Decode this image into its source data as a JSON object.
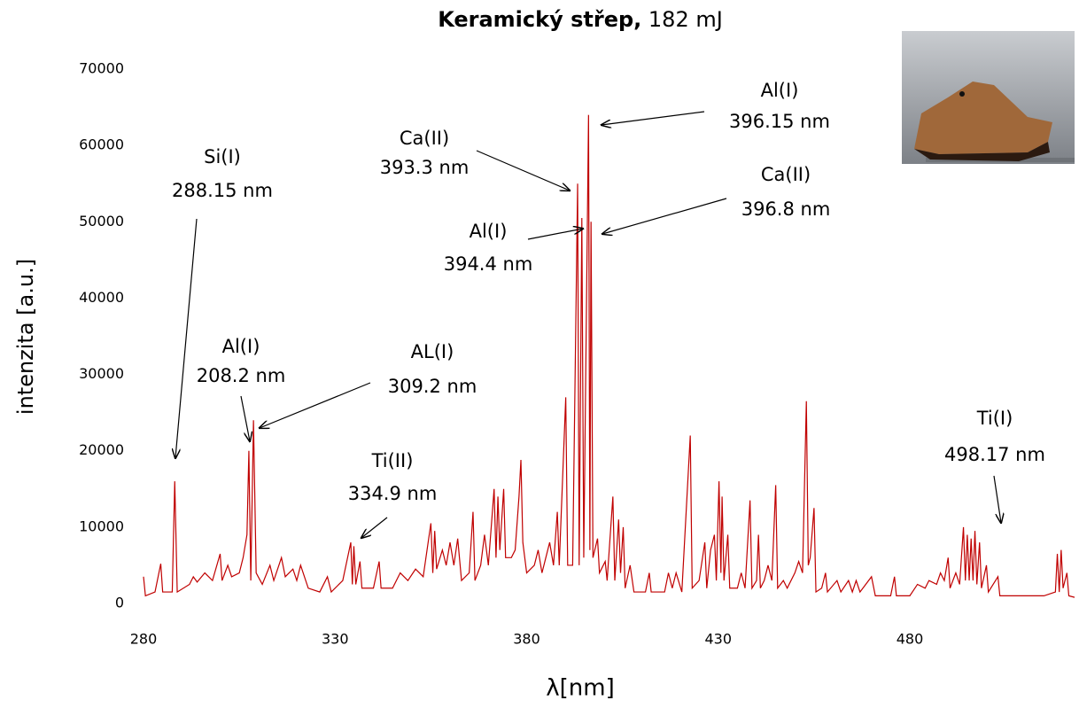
{
  "chart_data": {
    "type": "line",
    "title": "Keramický střep,",
    "subtitle": "182 mJ",
    "x_label": "λ[nm]",
    "y_label": "intenzita [a.u.]",
    "xlim": [
      280,
      523
    ],
    "ylim": [
      0,
      70000
    ],
    "xticks": [
      280,
      330,
      380,
      430,
      480
    ],
    "yticks": [
      0,
      10000,
      20000,
      30000,
      40000,
      50000,
      60000,
      70000
    ],
    "grid": false,
    "series": [
      {
        "color": "#c00000",
        "x": [
          280,
          280.5,
          283,
          284.5,
          285,
          287.5,
          288.15,
          288.8,
          292,
          293,
          294,
          296,
          298,
          300,
          300.5,
          302,
          303,
          305,
          306,
          307,
          307.5,
          308,
          308.7,
          309.4,
          311,
          313,
          314,
          316,
          317,
          319,
          320,
          321,
          323,
          326,
          328,
          329,
          331,
          332,
          334.1,
          334.5,
          334.9,
          335.4,
          336.5,
          337,
          340,
          341.5,
          342,
          345,
          347,
          349,
          351,
          353,
          355,
          355.5,
          356,
          356.5,
          358,
          359,
          360,
          361,
          362,
          363,
          365,
          366,
          366.5,
          368,
          369,
          370,
          371.5,
          372,
          372.5,
          373,
          374,
          374.5,
          376,
          377,
          378,
          378.5,
          379,
          380,
          382,
          383,
          384,
          385,
          386,
          387,
          388,
          388.5,
          390.2,
          390.7,
          392,
          393.3,
          393.7,
          394.4,
          394.9,
          396.15,
          396.5,
          396.8,
          397.3,
          398.5,
          399,
          400.5,
          401,
          402.5,
          403,
          404,
          404.5,
          405.2,
          405.7,
          407,
          408,
          411,
          412,
          412.5,
          416,
          417,
          418,
          419,
          420.5,
          422.7,
          423.2,
          425,
          426.5,
          427,
          428,
          429,
          429.5,
          430.2,
          430.7,
          431,
          431.5,
          432.5,
          433,
          435,
          436,
          437,
          438.3,
          438.8,
          440,
          440.5,
          441,
          442,
          443,
          444,
          445,
          445.5,
          447,
          448,
          450,
          451,
          452,
          453,
          453.5,
          454,
          455,
          455.5,
          457,
          458,
          458.5,
          461,
          462,
          464,
          465,
          466,
          467,
          470,
          471,
          475,
          476,
          476.5,
          480,
          482,
          484,
          485,
          487,
          488,
          489,
          490,
          490.5,
          492,
          493,
          494,
          494.5,
          495,
          495.5,
          496,
          496.5,
          497,
          497.5,
          498.2,
          498.7,
          500,
          500.5,
          503,
          503.5,
          508,
          515,
          518,
          518.5,
          519,
          519.5,
          520,
          521,
          521.5,
          523
        ],
        "values": [
          3500,
          1000,
          1500,
          5200,
          1500,
          1500,
          16000,
          1500,
          2500,
          3500,
          2800,
          4000,
          3000,
          6500,
          3000,
          5000,
          3500,
          4000,
          6000,
          9000,
          20000,
          3000,
          24000,
          4000,
          2500,
          5000,
          3000,
          6000,
          3500,
          4500,
          3000,
          5000,
          2000,
          1500,
          3500,
          1500,
          2500,
          3000,
          8000,
          2500,
          7500,
          2500,
          5500,
          2000,
          2000,
          5500,
          2000,
          2000,
          4000,
          3000,
          4500,
          3500,
          10500,
          4000,
          9500,
          4500,
          7000,
          5000,
          8000,
          5000,
          8500,
          3000,
          4000,
          12000,
          3000,
          5000,
          9000,
          5000,
          15000,
          6000,
          14000,
          7000,
          15000,
          6000,
          6000,
          7000,
          14000,
          18800,
          8000,
          4000,
          5000,
          7000,
          4000,
          6000,
          8000,
          5000,
          12000,
          5000,
          27000,
          5000,
          5000,
          55000,
          5000,
          50500,
          6000,
          64000,
          7000,
          50000,
          6000,
          8500,
          4000,
          5500,
          3000,
          14000,
          3000,
          11000,
          4000,
          10000,
          2000,
          5000,
          1500,
          1500,
          4000,
          1500,
          1500,
          4000,
          2000,
          4000,
          1500,
          22000,
          2000,
          3000,
          8000,
          2000,
          7000,
          9000,
          3000,
          16000,
          4000,
          14000,
          3000,
          9000,
          2000,
          2000,
          4000,
          2000,
          13500,
          2000,
          3000,
          9000,
          2000,
          3000,
          5000,
          3000,
          15500,
          2000,
          3000,
          2000,
          4000,
          5500,
          4000,
          26500,
          5000,
          6000,
          12500,
          1500,
          2000,
          4000,
          1500,
          3000,
          1500,
          3000,
          1500,
          3000,
          1500,
          3500,
          1000,
          1000,
          3500,
          1000,
          1000,
          2500,
          2000,
          3000,
          2500,
          4000,
          3000,
          6000,
          2000,
          4000,
          2500,
          10000,
          3000,
          9000,
          3000,
          8500,
          3000,
          9500,
          2500,
          8000,
          2000,
          5000,
          1500,
          3500,
          1000,
          1000,
          1000,
          1500,
          6500,
          1500,
          7000,
          2000,
          4000,
          1000,
          800
        ]
      }
    ],
    "annotations": [
      [
        "Si(I)",
        "288.15 nm"
      ],
      [
        "Al(I)",
        "208.2 nm"
      ],
      [
        "AL(I)",
        "309.2 nm"
      ],
      [
        "Ti(II)",
        "334.9 nm"
      ],
      [
        "Ca(II)",
        "393.3 nm"
      ],
      [
        "Al(I)",
        "394.4 nm"
      ],
      [
        "Al(I)",
        "396.15 nm"
      ],
      [
        "Ca(II)",
        "396.8 nm"
      ],
      [
        "Ti(I)",
        "498.17 nm"
      ]
    ]
  }
}
